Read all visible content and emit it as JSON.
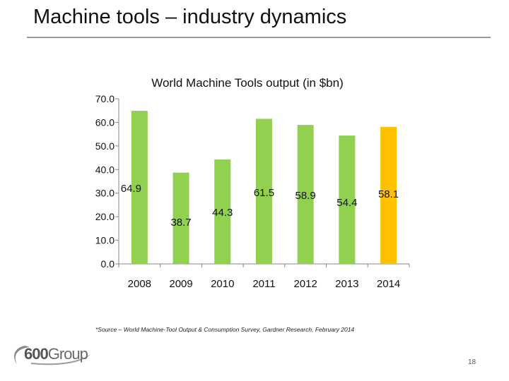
{
  "slide": {
    "title": "Machine tools – industry dynamics",
    "source_note": "*Source – World Machine-Tool Output & Consumption Survey, Gardner Research, February 2014",
    "page_number": "18"
  },
  "logo": {
    "number": "600",
    "word": "Group"
  },
  "colors": {
    "bar": "#92D050",
    "highlight": "#FFC000"
  },
  "chart_data": {
    "type": "bar",
    "title": "World Machine Tools output (in $bn)",
    "categories": [
      "2008",
      "2009",
      "2010",
      "2011",
      "2012",
      "2013",
      "2014"
    ],
    "values": [
      64.9,
      38.7,
      44.3,
      61.5,
      58.9,
      54.4,
      58.1
    ],
    "value_labels": [
      "64.9",
      "38.7",
      "44.3",
      "61.5",
      "58.9",
      "54.4",
      "58.1"
    ],
    "highlight": [
      "2014"
    ],
    "ylim": [
      0,
      70
    ],
    "yticks": [
      "0.0",
      "10.0",
      "20.0",
      "30.0",
      "40.0",
      "50.0",
      "60.0",
      "70.0"
    ],
    "xlabel": "",
    "ylabel": "",
    "grid": false,
    "legend": "none"
  }
}
